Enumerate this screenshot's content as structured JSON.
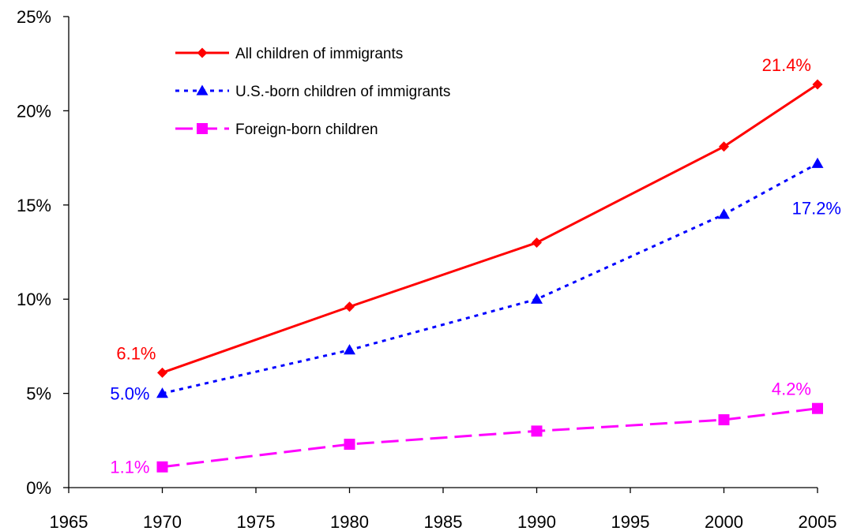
{
  "chart_data": {
    "type": "line",
    "title": "",
    "xlabel": "",
    "ylabel": "",
    "xlim": [
      1965,
      2005
    ],
    "ylim": [
      0,
      25
    ],
    "x_ticks": [
      1965,
      1970,
      1975,
      1980,
      1985,
      1990,
      1995,
      2000,
      2005
    ],
    "x_tick_labels": [
      "1965",
      "1970",
      "1975",
      "1980",
      "1985",
      "1990",
      "1995",
      "2000",
      "2005"
    ],
    "y_ticks": [
      0,
      5,
      10,
      15,
      20,
      25
    ],
    "y_tick_labels": [
      "0%",
      "5%",
      "10%",
      "15%",
      "20%",
      "25%"
    ],
    "grid": false,
    "legend_position": "top-left",
    "x": [
      1970,
      1980,
      1990,
      2000,
      2005
    ],
    "series": [
      {
        "name": "All children of immigrants",
        "values": [
          6.1,
          9.6,
          13.0,
          18.1,
          21.4
        ],
        "color": "#ff0000",
        "marker": "diamond",
        "line_style": "solid",
        "data_labels": [
          {
            "index": 0,
            "text": "6.1%",
            "placement": "above-left"
          },
          {
            "index": 4,
            "text": "21.4%",
            "placement": "above-left"
          }
        ]
      },
      {
        "name": "U.S.-born children of immigrants",
        "values": [
          5.0,
          7.3,
          10.0,
          14.5,
          17.2
        ],
        "color": "#0000ff",
        "marker": "triangle",
        "line_style": "dotted",
        "data_labels": [
          {
            "index": 0,
            "text": "5.0%",
            "placement": "left"
          },
          {
            "index": 4,
            "text": "17.2%",
            "placement": "below-left"
          }
        ]
      },
      {
        "name": "Foreign-born children",
        "values": [
          1.1,
          2.3,
          3.0,
          3.6,
          4.2
        ],
        "color": "#ff00ff",
        "marker": "square",
        "line_style": "dashed",
        "data_labels": [
          {
            "index": 0,
            "text": "1.1%",
            "placement": "left"
          },
          {
            "index": 4,
            "text": "4.2%",
            "placement": "above-left"
          }
        ]
      }
    ]
  }
}
